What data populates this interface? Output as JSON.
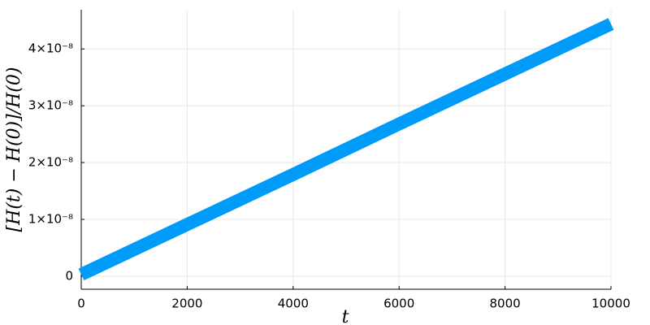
{
  "chart_data": {
    "type": "line",
    "xlabel": "t",
    "ylabel": "[H(t) − H(0)]/H(0)",
    "x": [
      0,
      2000,
      4000,
      6000,
      8000,
      10000
    ],
    "series": [
      {
        "color": "#009af9",
        "values": [
          3e-10,
          9.1e-09,
          1.79e-08,
          2.68e-08,
          3.56e-08,
          4.44e-08
        ]
      }
    ],
    "xlim": [
      0,
      10000
    ],
    "ylim": [
      -2.3e-09,
      4.69e-08
    ],
    "xticks": [
      0,
      2000,
      4000,
      6000,
      8000,
      10000
    ],
    "yticks": [
      0,
      {
        "value": 1e-08,
        "label": "1×10⁻⁸"
      },
      {
        "value": 2e-08,
        "label": "2×10⁻⁸"
      },
      {
        "value": 3e-08,
        "label": "3×10⁻⁸"
      },
      {
        "value": 4e-08,
        "label": "4×10⁻⁸"
      }
    ],
    "grid": true
  }
}
